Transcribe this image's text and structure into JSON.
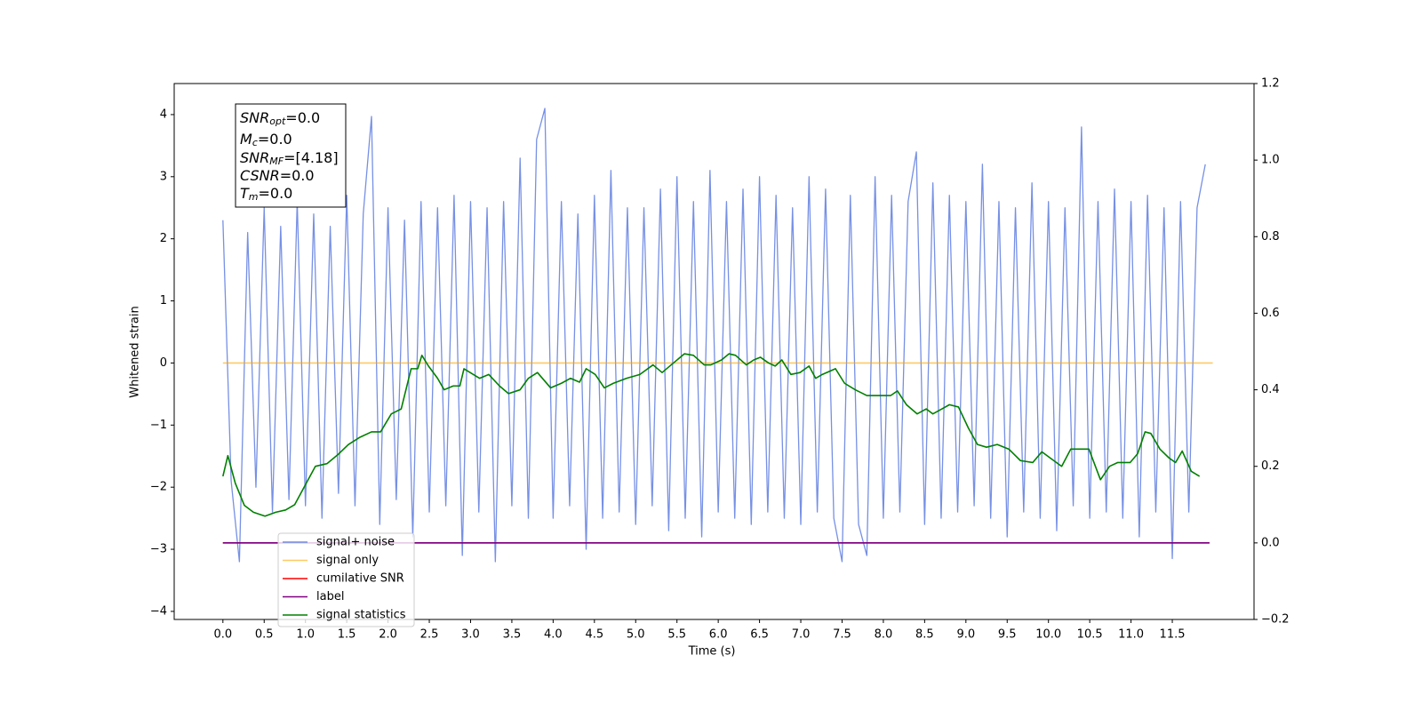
{
  "chart_data": {
    "type": "line",
    "xlabel": "Time (s)",
    "ylabel": "Whitened strain",
    "xlim": [
      -0.59,
      12.49
    ],
    "ylim": [
      -4.13,
      4.5
    ],
    "y2lim": [
      -0.2,
      1.2
    ],
    "xticks": [
      {
        "value": 0,
        "label": "0.0"
      },
      {
        "value": 0.5,
        "label": "0.5"
      },
      {
        "value": 1,
        "label": "1.0"
      },
      {
        "value": 1.5,
        "label": "1.5"
      },
      {
        "value": 2,
        "label": "2.0"
      },
      {
        "value": 2.5,
        "label": "2.5"
      },
      {
        "value": 3,
        "label": "3.0"
      },
      {
        "value": 3.5,
        "label": "3.5"
      },
      {
        "value": 4,
        "label": "4.0"
      },
      {
        "value": 4.5,
        "label": "4.5"
      },
      {
        "value": 5,
        "label": "5.0"
      },
      {
        "value": 5.5,
        "label": "5.5"
      },
      {
        "value": 6,
        "label": "6.0"
      },
      {
        "value": 6.5,
        "label": "6.5"
      },
      {
        "value": 7,
        "label": "7.0"
      },
      {
        "value": 7.5,
        "label": "7.5"
      },
      {
        "value": 8,
        "label": "8.0"
      },
      {
        "value": 8.5,
        "label": "8.5"
      },
      {
        "value": 9,
        "label": "9.0"
      },
      {
        "value": 9.5,
        "label": "9.5"
      },
      {
        "value": 10,
        "label": "10.0"
      },
      {
        "value": 10.5,
        "label": "10.5"
      },
      {
        "value": 11,
        "label": "11.0"
      },
      {
        "value": 11.5,
        "label": "11.5"
      }
    ],
    "yticks": [
      {
        "value": -4,
        "label": "−4"
      },
      {
        "value": -3,
        "label": "−3"
      },
      {
        "value": -2,
        "label": "−2"
      },
      {
        "value": -1,
        "label": "−1"
      },
      0,
      1,
      2,
      3,
      4
    ],
    "y2ticks": [
      {
        "value": -0.2,
        "label": "−0.2"
      },
      {
        "value": 0,
        "label": "0.0"
      },
      0.2,
      0.4,
      0.6,
      0.8,
      {
        "value": 1,
        "label": "1.0"
      },
      1.2
    ],
    "legend": "lower left",
    "annotation": [
      {
        "base": "SNR",
        "sub": "opt",
        "text": "=0.0"
      },
      {
        "base": "M",
        "sub": "c",
        "text": "=0.0"
      },
      {
        "base": "SNR",
        "sub": "MF",
        "text": "=[4.18]"
      },
      {
        "base": "CSNR",
        "sub": "",
        "text": "=0.0"
      },
      {
        "base": "T",
        "sub": "m",
        "text": "=0.0"
      }
    ],
    "series": [
      {
        "name": "signal+ noise",
        "color": "#6f8ae4",
        "axis": "y",
        "x": [
          0,
          0.1,
          0.2,
          0.3,
          0.4,
          0.5,
          0.6,
          0.7,
          0.8,
          0.9,
          1,
          1.1,
          1.2,
          1.3,
          1.4,
          1.5,
          1.6,
          1.7,
          1.8,
          1.9,
          2,
          2.1,
          2.2,
          2.3,
          2.4,
          2.5,
          2.6,
          2.7,
          2.8,
          2.9,
          3,
          3.1,
          3.2,
          3.3,
          3.4,
          3.5,
          3.6,
          3.7,
          3.8,
          3.9,
          4,
          4.1,
          4.2,
          4.3,
          4.4,
          4.5,
          4.6,
          4.7,
          4.8,
          4.9,
          5,
          5.1,
          5.2,
          5.3,
          5.4,
          5.5,
          5.6,
          5.7,
          5.8,
          5.9,
          6,
          6.1,
          6.2,
          6.3,
          6.4,
          6.5,
          6.6,
          6.7,
          6.8,
          6.9,
          7,
          7.1,
          7.2,
          7.3,
          7.4,
          7.5,
          7.6,
          7.7,
          7.8,
          7.9,
          8,
          8.1,
          8.2,
          8.3,
          8.4,
          8.5,
          8.6,
          8.7,
          8.8,
          8.9,
          9,
          9.1,
          9.2,
          9.3,
          9.4,
          9.5,
          9.6,
          9.7,
          9.8,
          9.9,
          10,
          10.1,
          10.2,
          10.3,
          10.4,
          10.5,
          10.6,
          10.7,
          10.8,
          10.9,
          11,
          11.1,
          11.2,
          11.3,
          11.4,
          11.5,
          11.6,
          11.7,
          11.8,
          11.9
        ],
        "values": [
          2.3,
          -1.9,
          -3.2,
          2.1,
          -2.0,
          2.5,
          -2.4,
          2.2,
          -2.2,
          2.6,
          -2.3,
          2.4,
          -2.5,
          2.2,
          -2.1,
          2.7,
          -2.3,
          2.4,
          3.97,
          -2.6,
          2.5,
          -2.2,
          2.3,
          -2.8,
          2.6,
          -2.4,
          2.5,
          -2.3,
          2.7,
          -3.1,
          2.6,
          -2.4,
          2.5,
          -3.2,
          2.6,
          -2.3,
          3.3,
          -2.5,
          3.6,
          4.1,
          -2.5,
          2.6,
          -2.3,
          2.4,
          -3.0,
          2.7,
          -2.5,
          3.1,
          -2.4,
          2.5,
          -2.6,
          2.5,
          -2.3,
          2.8,
          -2.7,
          3.0,
          -2.5,
          2.6,
          -2.8,
          3.1,
          -2.4,
          2.6,
          -2.5,
          2.8,
          -2.6,
          3.0,
          -2.4,
          2.7,
          -2.5,
          2.5,
          -2.6,
          3.0,
          -2.4,
          2.8,
          -2.5,
          -3.2,
          2.7,
          -2.6,
          -3.1,
          3.0,
          -2.5,
          2.7,
          -2.4,
          2.6,
          3.4,
          -2.6,
          2.9,
          -2.5,
          2.7,
          -2.4,
          2.6,
          -2.3,
          3.2,
          -2.5,
          2.6,
          -2.8,
          2.5,
          -2.4,
          2.9,
          -2.5,
          2.6,
          -2.7,
          2.5,
          -2.3,
          3.8,
          -2.5,
          2.6,
          -2.4,
          2.8,
          -2.5,
          2.6,
          -2.8,
          2.7,
          -2.4,
          2.5,
          -3.15,
          2.6,
          -2.4,
          2.5,
          3.2
        ]
      },
      {
        "name": "signal only",
        "color": "#ffa500",
        "axis": "y",
        "x": [
          0,
          11.99
        ],
        "values": [
          0,
          0
        ]
      },
      {
        "name": "cumilative SNR",
        "color": "#ff0000",
        "axis": "y2",
        "x": [
          0,
          11.95
        ],
        "values": [
          0,
          0
        ]
      },
      {
        "name": "label",
        "color": "#800080",
        "axis": "y2",
        "x": [
          0,
          11.95
        ],
        "values": [
          0,
          0
        ]
      },
      {
        "name": "signal statistics",
        "color": "#008000",
        "axis": "y2",
        "x": [
          0,
          0.06,
          0.15,
          0.26,
          0.37,
          0.51,
          0.64,
          0.76,
          0.87,
          1.01,
          1.12,
          1.26,
          1.39,
          1.52,
          1.66,
          1.8,
          1.91,
          2.04,
          2.16,
          2.28,
          2.36,
          2.41,
          2.49,
          2.6,
          2.68,
          2.79,
          2.87,
          2.92,
          3.11,
          3.22,
          3.35,
          3.46,
          3.6,
          3.7,
          3.81,
          3.97,
          4.1,
          4.21,
          4.32,
          4.4,
          4.51,
          4.62,
          4.73,
          4.89,
          5.05,
          5.21,
          5.32,
          5.43,
          5.59,
          5.7,
          5.83,
          5.91,
          6.04,
          6.13,
          6.21,
          6.34,
          6.43,
          6.51,
          6.61,
          6.69,
          6.77,
          6.88,
          6.99,
          7.1,
          7.18,
          7.26,
          7.42,
          7.53,
          7.66,
          7.8,
          7.96,
          8.09,
          8.17,
          8.28,
          8.41,
          8.52,
          8.6,
          8.71,
          8.8,
          8.91,
          9.03,
          9.14,
          9.25,
          9.38,
          9.52,
          9.66,
          9.81,
          9.92,
          10.02,
          10.16,
          10.27,
          10.38,
          10.49,
          10.63,
          10.74,
          10.84,
          10.99,
          11.08,
          11.17,
          11.24,
          11.35,
          11.46,
          11.54,
          11.62,
          11.73,
          11.83
        ],
        "values": [
          0.174,
          0.228,
          0.156,
          0.098,
          0.08,
          0.07,
          0.08,
          0.086,
          0.1,
          0.156,
          0.2,
          0.207,
          0.23,
          0.257,
          0.276,
          0.29,
          0.29,
          0.337,
          0.35,
          0.455,
          0.455,
          0.49,
          0.462,
          0.43,
          0.4,
          0.41,
          0.41,
          0.455,
          0.43,
          0.44,
          0.41,
          0.39,
          0.4,
          0.43,
          0.445,
          0.405,
          0.417,
          0.43,
          0.42,
          0.455,
          0.44,
          0.405,
          0.417,
          0.43,
          0.44,
          0.465,
          0.445,
          0.465,
          0.494,
          0.49,
          0.465,
          0.465,
          0.478,
          0.494,
          0.49,
          0.465,
          0.478,
          0.485,
          0.47,
          0.462,
          0.478,
          0.44,
          0.445,
          0.462,
          0.43,
          0.44,
          0.455,
          0.417,
          0.4,
          0.385,
          0.385,
          0.385,
          0.397,
          0.361,
          0.337,
          0.35,
          0.337,
          0.35,
          0.361,
          0.355,
          0.3,
          0.257,
          0.25,
          0.257,
          0.245,
          0.215,
          0.21,
          0.238,
          0.222,
          0.2,
          0.245,
          0.245,
          0.245,
          0.165,
          0.2,
          0.21,
          0.21,
          0.233,
          0.29,
          0.286,
          0.245,
          0.222,
          0.21,
          0.24,
          0.187,
          0.174
        ]
      }
    ]
  }
}
